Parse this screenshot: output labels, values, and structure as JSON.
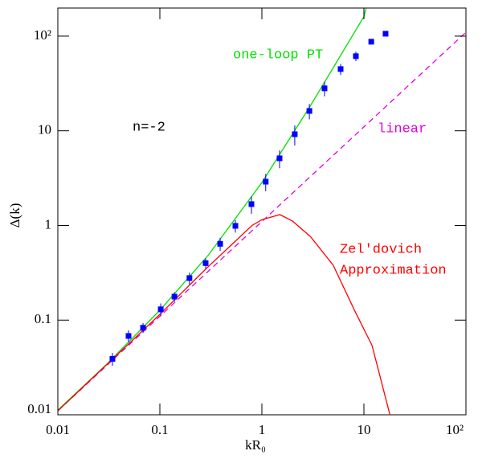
{
  "chart_data": {
    "type": "line",
    "x_label": "kR₀",
    "y_label": "Δ(k)",
    "log_x": true,
    "log_y": true,
    "xlim": [
      0.01,
      100
    ],
    "ylim": [
      0.01,
      198
    ],
    "xticks": [
      0.01,
      0.1,
      1,
      10,
      {
        "value": 100,
        "label": "10²"
      }
    ],
    "yticks": [
      0.01,
      0.1,
      1,
      10,
      {
        "value": 100,
        "label": "10²"
      }
    ],
    "annotations": [
      {
        "text": "one-loop PT",
        "color": "#00e000"
      },
      {
        "text": "linear",
        "color": "#e000e0"
      },
      {
        "text": "n=-2",
        "color": "#000000"
      },
      {
        "text": "Zel'dovich",
        "color": "#ff0000"
      },
      {
        "text": "Approximation",
        "color": "#ff0000"
      }
    ],
    "series": [
      {
        "color": "#00e000",
        "style": "solid",
        "x": [
          0.01,
          0.03,
          0.1,
          0.3,
          1,
          3,
          10,
          10.5
        ],
        "values": [
          0.0112,
          0.0341,
          0.127,
          0.49,
          2.84,
          18.5,
          161,
          195
        ]
      },
      {
        "color": "#e000e0",
        "style": "dashed",
        "x": [
          0.01,
          100
        ],
        "values": [
          0.011,
          110
        ]
      },
      {
        "color": "#ff0000",
        "style": "solid",
        "x": [
          0.01,
          0.1,
          0.3,
          0.5,
          0.8,
          1,
          1.5,
          2,
          3,
          5,
          8,
          12,
          18
        ],
        "values": [
          0.011,
          0.115,
          0.37,
          0.62,
          1.0,
          1.15,
          1.3,
          1.11,
          0.76,
          0.38,
          0.13,
          0.054,
          0.01
        ]
      },
      {
        "color": "#0000ff",
        "style": "points",
        "x": [
          0.0343,
          0.0493,
          0.0684,
          0.102,
          0.139,
          0.195,
          0.281,
          0.39,
          0.55,
          0.79,
          1.09,
          1.49,
          2.1,
          2.92,
          4.11,
          5.91,
          8.34,
          11.8,
          16.3
        ],
        "values": [
          0.039,
          0.068,
          0.083,
          0.13,
          0.177,
          0.278,
          0.4,
          0.64,
          0.99,
          1.68,
          2.9,
          5.12,
          9.2,
          16.2,
          28.1,
          44.9,
          61.4,
          87.3,
          106
        ],
        "errors": [
          0.006,
          0.01,
          0.01,
          0.02,
          0.02,
          0.04,
          0.05,
          0.1,
          0.15,
          0.35,
          0.6,
          1.1,
          2.2,
          3,
          5,
          6,
          7,
          5,
          5
        ]
      }
    ]
  }
}
